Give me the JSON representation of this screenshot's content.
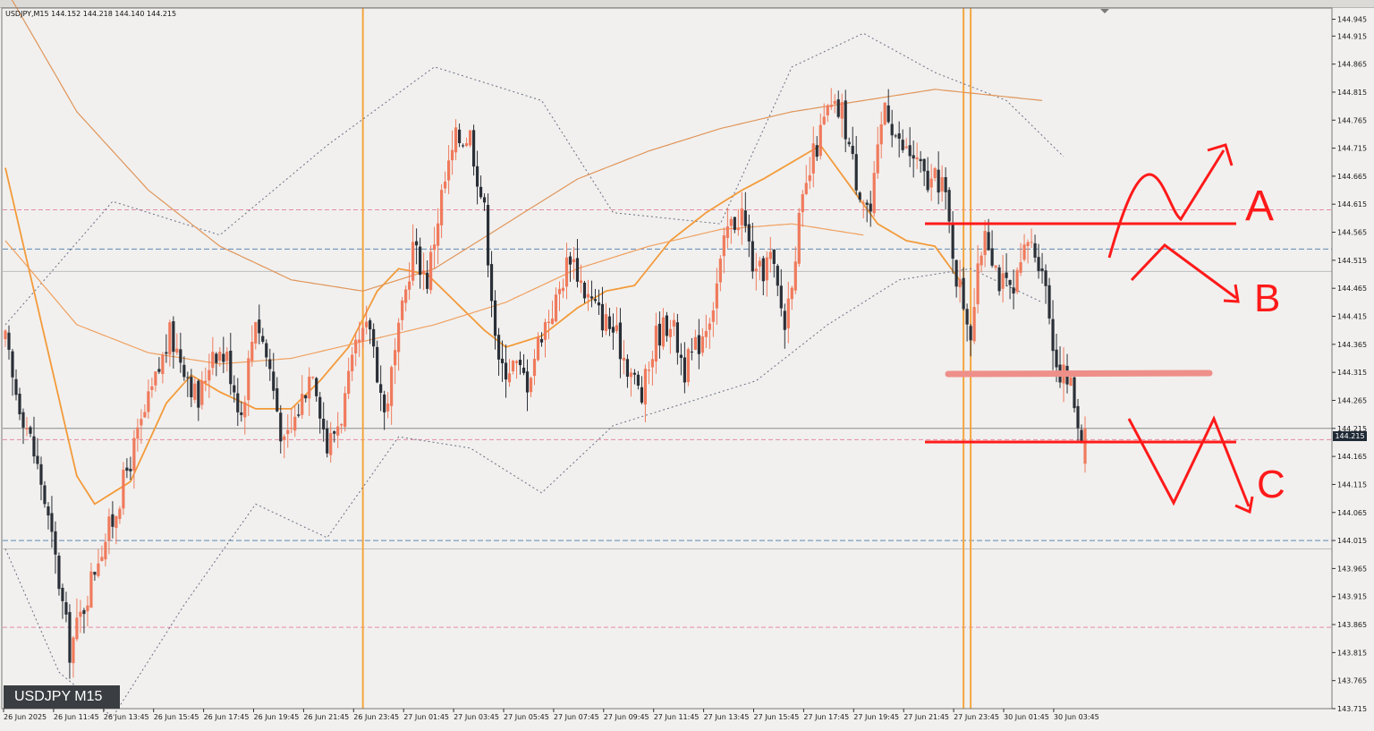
{
  "window": {
    "symbol_info": "USDJPY,M15  144.152 144.218 144.140 144.215",
    "symbol_label": "USDJPY M15",
    "current_price_label": "144.215"
  },
  "annotations": [
    "A",
    "B",
    "C"
  ],
  "colors": {
    "background": "#f1f0ee",
    "bull": "#f07a5c",
    "bear": "#2a2f37",
    "ma_fast": "#f39a3a",
    "ma_slow": "#f0a060",
    "ma_long": "#e0955a",
    "bands": "#6a6e86",
    "session_line": "#f5a540",
    "level_pink": "#e58aa8",
    "level_blue": "#5f86b5",
    "drawing_red": "#ff1a1a",
    "support_band": "#ee8f8a"
  },
  "chart_data": {
    "type": "candlestick",
    "title": "",
    "symbol": "USDJPY",
    "timeframe": "M15",
    "ohlc_last": {
      "open": 144.152,
      "high": 144.218,
      "low": 144.14,
      "close": 144.215
    },
    "ylim": [
      143.715,
      144.965
    ],
    "y_ticks": [
      "144.945",
      "144.915",
      "144.865",
      "144.815",
      "144.765",
      "144.715",
      "144.665",
      "144.615",
      "144.565",
      "144.515",
      "144.465",
      "144.415",
      "144.365",
      "144.315",
      "144.265",
      "144.215",
      "144.165",
      "144.115",
      "144.065",
      "144.015",
      "143.965",
      "143.915",
      "143.865",
      "143.815",
      "143.765",
      "143.715"
    ],
    "x_labels": [
      "26 Jun 2025",
      "26 Jun 11:45",
      "26 Jun 13:45",
      "26 Jun 15:45",
      "26 Jun 17:45",
      "26 Jun 19:45",
      "26 Jun 21:45",
      "26 Jun 23:45",
      "27 Jun 01:45",
      "27 Jun 03:45",
      "27 Jun 05:45",
      "27 Jun 07:45",
      "27 Jun 09:45",
      "27 Jun 11:45",
      "27 Jun 13:45",
      "27 Jun 15:45",
      "27 Jun 17:45",
      "27 Jun 19:45",
      "27 Jun 21:45",
      "27 Jun 23:45",
      "30 Jun 01:45",
      "30 Jun 03:45"
    ],
    "grid": false,
    "candle_keypoints": [
      [
        0,
        144.37
      ],
      [
        2,
        144.3
      ],
      [
        6,
        144.22
      ],
      [
        10,
        144.12
      ],
      [
        14,
        143.98
      ],
      [
        18,
        143.82
      ],
      [
        22,
        143.9
      ],
      [
        26,
        143.99
      ],
      [
        30,
        144.05
      ],
      [
        34,
        144.14
      ],
      [
        38,
        144.22
      ],
      [
        42,
        144.3
      ],
      [
        46,
        144.38
      ],
      [
        50,
        144.33
      ],
      [
        54,
        144.26
      ],
      [
        58,
        144.36
      ],
      [
        62,
        144.34
      ],
      [
        66,
        144.24
      ],
      [
        70,
        144.42
      ],
      [
        74,
        144.32
      ],
      [
        78,
        144.18
      ],
      [
        82,
        144.25
      ],
      [
        86,
        144.33
      ],
      [
        90,
        144.18
      ],
      [
        94,
        144.24
      ],
      [
        98,
        144.35
      ],
      [
        102,
        144.4
      ],
      [
        106,
        144.24
      ],
      [
        110,
        144.38
      ],
      [
        114,
        144.54
      ],
      [
        118,
        144.48
      ],
      [
        122,
        144.63
      ],
      [
        126,
        144.73
      ],
      [
        130,
        144.74
      ],
      [
        134,
        144.6
      ],
      [
        138,
        144.32
      ],
      [
        142,
        144.33
      ],
      [
        146,
        144.3
      ],
      [
        150,
        144.39
      ],
      [
        154,
        144.44
      ],
      [
        158,
        144.53
      ],
      [
        162,
        144.46
      ],
      [
        166,
        144.42
      ],
      [
        170,
        144.39
      ],
      [
        174,
        144.33
      ],
      [
        178,
        144.27
      ],
      [
        182,
        144.38
      ],
      [
        186,
        144.41
      ],
      [
        190,
        144.32
      ],
      [
        194,
        144.37
      ],
      [
        198,
        144.44
      ],
      [
        202,
        144.57
      ],
      [
        206,
        144.6
      ],
      [
        210,
        144.48
      ],
      [
        214,
        144.52
      ],
      [
        218,
        144.4
      ],
      [
        222,
        144.58
      ],
      [
        226,
        144.7
      ],
      [
        230,
        144.78
      ],
      [
        234,
        144.78
      ],
      [
        238,
        144.66
      ],
      [
        242,
        144.6
      ],
      [
        246,
        144.8
      ],
      [
        250,
        144.72
      ],
      [
        254,
        144.7
      ],
      [
        258,
        144.65
      ],
      [
        262,
        144.66
      ],
      [
        266,
        144.49
      ],
      [
        270,
        144.39
      ],
      [
        274,
        144.58
      ],
      [
        278,
        144.48
      ],
      [
        282,
        144.45
      ],
      [
        286,
        144.55
      ],
      [
        290,
        144.51
      ],
      [
        294,
        144.33
      ],
      [
        298,
        144.29
      ],
      [
        302,
        144.17
      ]
    ],
    "series": [
      {
        "name": "",
        "kind": "ma_fast",
        "keypoints": [
          [
            0,
            144.68
          ],
          [
            20,
            144.13
          ],
          [
            25,
            144.08
          ],
          [
            35,
            144.12
          ],
          [
            45,
            144.26
          ],
          [
            52,
            144.31
          ],
          [
            60,
            144.28
          ],
          [
            70,
            144.25
          ],
          [
            80,
            144.25
          ],
          [
            88,
            144.3
          ],
          [
            96,
            144.36
          ],
          [
            104,
            144.46
          ],
          [
            110,
            144.5
          ],
          [
            118,
            144.49
          ],
          [
            126,
            144.44
          ],
          [
            134,
            144.39
          ],
          [
            140,
            144.36
          ],
          [
            150,
            144.38
          ],
          [
            160,
            144.43
          ],
          [
            168,
            144.46
          ],
          [
            176,
            144.47
          ],
          [
            186,
            144.55
          ],
          [
            196,
            144.6
          ],
          [
            206,
            144.64
          ],
          [
            212,
            144.66
          ],
          [
            220,
            144.69
          ],
          [
            228,
            144.72
          ],
          [
            236,
            144.65
          ],
          [
            244,
            144.58
          ],
          [
            252,
            144.55
          ],
          [
            260,
            144.54
          ],
          [
            268,
            144.47
          ]
        ]
      },
      {
        "name": "",
        "kind": "ma_slow",
        "keypoints": [
          [
            0,
            144.55
          ],
          [
            20,
            144.4
          ],
          [
            40,
            144.35
          ],
          [
            60,
            144.33
          ],
          [
            80,
            144.34
          ],
          [
            100,
            144.37
          ],
          [
            120,
            144.4
          ],
          [
            140,
            144.44
          ],
          [
            160,
            144.5
          ],
          [
            180,
            144.54
          ],
          [
            200,
            144.57
          ],
          [
            220,
            144.58
          ],
          [
            240,
            144.56
          ]
        ]
      },
      {
        "name": "",
        "kind": "ma_long",
        "keypoints": [
          [
            0,
            145.0
          ],
          [
            20,
            144.78
          ],
          [
            40,
            144.64
          ],
          [
            60,
            144.54
          ],
          [
            80,
            144.48
          ],
          [
            100,
            144.46
          ],
          [
            120,
            144.5
          ],
          [
            140,
            144.58
          ],
          [
            160,
            144.66
          ],
          [
            180,
            144.71
          ],
          [
            200,
            144.75
          ],
          [
            220,
            144.78
          ],
          [
            240,
            144.8
          ],
          [
            260,
            144.82
          ],
          [
            290,
            144.8
          ]
        ]
      },
      {
        "name": "",
        "kind": "band_upper",
        "keypoints": [
          [
            0,
            144.4
          ],
          [
            30,
            144.62
          ],
          [
            60,
            144.56
          ],
          [
            90,
            144.72
          ],
          [
            120,
            144.86
          ],
          [
            150,
            144.8
          ],
          [
            170,
            144.6
          ],
          [
            200,
            144.58
          ],
          [
            220,
            144.86
          ],
          [
            240,
            144.92
          ],
          [
            260,
            144.85
          ],
          [
            280,
            144.8
          ],
          [
            296,
            144.7
          ]
        ]
      },
      {
        "name": "",
        "kind": "band_lower",
        "keypoints": [
          [
            0,
            144.0
          ],
          [
            15,
            143.78
          ],
          [
            30,
            143.7
          ],
          [
            50,
            143.9
          ],
          [
            70,
            144.08
          ],
          [
            90,
            144.02
          ],
          [
            110,
            144.2
          ],
          [
            130,
            144.18
          ],
          [
            150,
            144.1
          ],
          [
            170,
            144.22
          ],
          [
            190,
            144.26
          ],
          [
            210,
            144.3
          ],
          [
            230,
            144.4
          ],
          [
            250,
            144.48
          ],
          [
            270,
            144.5
          ],
          [
            290,
            144.44
          ]
        ]
      }
    ],
    "horizontal_levels": [
      {
        "price": 144.605,
        "style": "pink-dashed"
      },
      {
        "price": 144.535,
        "style": "blue-dashed"
      },
      {
        "price": 144.495,
        "style": "gray-solid"
      },
      {
        "price": 144.195,
        "style": "pink-dashed"
      },
      {
        "price": 144.015,
        "style": "blue-dashed"
      },
      {
        "price": 144.0,
        "style": "gray-solid"
      },
      {
        "price": 143.86,
        "style": "pink-dashed"
      }
    ],
    "session_lines_at_index": [
      100,
      268,
      270
    ]
  }
}
